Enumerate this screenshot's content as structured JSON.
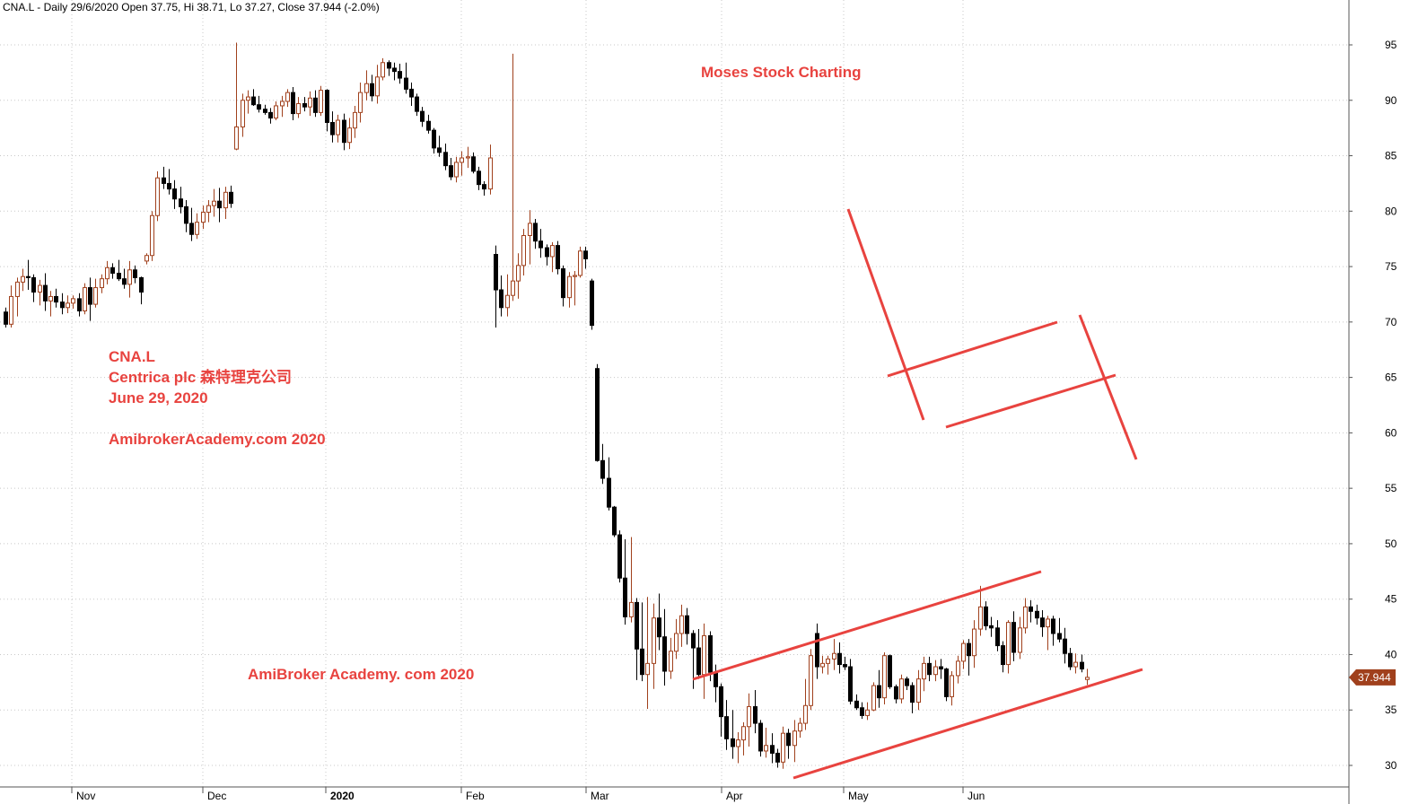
{
  "chart_data": {
    "type": "candlestick",
    "header": "CNA.L - Daily 29/6/2020 Open 37.75, Hi 38.71, Lo 37.27, Close 37.944 (-2.0%)",
    "ylim": [
      28,
      97
    ],
    "y_ticks": [
      95,
      90,
      85,
      80,
      75,
      70,
      65,
      60,
      55,
      50,
      45,
      40,
      35,
      30
    ],
    "x_ticks": [
      {
        "label": "Nov",
        "bold": false
      },
      {
        "label": "Dec",
        "bold": false
      },
      {
        "label": "2020",
        "bold": true
      },
      {
        "label": "Feb",
        "bold": false
      },
      {
        "label": "Mar",
        "bold": false
      },
      {
        "label": "Apr",
        "bold": false
      },
      {
        "label": "May",
        "bold": false
      },
      {
        "label": "Jun",
        "bold": false
      }
    ],
    "grid": true,
    "up_color": "#a0401c",
    "down_color": "#000000",
    "annotation_color": "#e8433f",
    "last_price": {
      "value": 37.944,
      "label": "37.944",
      "color": "#a0401c"
    },
    "annotations": [
      "Moses Stock Charting",
      "CNA.L",
      "Centrica plc 森特理克公司",
      "June 29, 2020",
      "AmibrokerAcademy.com 2020",
      "AmiBroker Academy. com 2020"
    ],
    "candles": [
      [
        70.9,
        71.3,
        69.5,
        69.8
      ],
      [
        69.8,
        73.3,
        69.5,
        72.3
      ],
      [
        72.3,
        74.0,
        70.5,
        73.6
      ],
      [
        73.6,
        74.8,
        72.8,
        74.1
      ],
      [
        74.1,
        75.6,
        72.9,
        74.0
      ],
      [
        74.0,
        74.3,
        71.8,
        72.7
      ],
      [
        72.7,
        73.8,
        71.5,
        73.3
      ],
      [
        73.3,
        74.4,
        71.0,
        71.9
      ],
      [
        71.9,
        72.8,
        70.5,
        72.3
      ],
      [
        72.3,
        73.0,
        71.3,
        71.8
      ],
      [
        71.8,
        72.6,
        70.7,
        71.3
      ],
      [
        71.3,
        72.4,
        70.8,
        71.7
      ],
      [
        71.7,
        72.4,
        71.2,
        72.1
      ],
      [
        72.1,
        72.6,
        70.5,
        71.0
      ],
      [
        71.0,
        73.5,
        70.7,
        73.1
      ],
      [
        73.1,
        74.0,
        70.1,
        71.6
      ],
      [
        71.6,
        73.9,
        71.3,
        73.1
      ],
      [
        73.1,
        74.3,
        72.6,
        73.9
      ],
      [
        73.9,
        75.5,
        73.4,
        74.9
      ],
      [
        74.9,
        75.3,
        73.9,
        74.4
      ],
      [
        74.4,
        75.6,
        73.7,
        73.9
      ],
      [
        73.9,
        74.8,
        73.0,
        73.4
      ],
      [
        73.4,
        75.5,
        72.2,
        74.7
      ],
      [
        74.7,
        75.1,
        73.5,
        74.0
      ],
      [
        74.0,
        74.1,
        71.6,
        72.7
      ],
      [
        75.5,
        76.2,
        75.2,
        76.0
      ],
      [
        76.0,
        80.0,
        75.5,
        79.6
      ],
      [
        79.6,
        83.6,
        79.1,
        83.0
      ],
      [
        83.0,
        84.0,
        82.0,
        82.5
      ],
      [
        82.5,
        83.8,
        81.5,
        82.0
      ],
      [
        82.0,
        82.8,
        80.2,
        81.1
      ],
      [
        81.1,
        82.2,
        79.8,
        80.4
      ],
      [
        80.4,
        81.0,
        78.1,
        78.9
      ],
      [
        78.9,
        80.3,
        77.3,
        77.9
      ],
      [
        77.9,
        79.8,
        77.5,
        79.0
      ],
      [
        79.0,
        80.5,
        78.4,
        79.9
      ],
      [
        79.9,
        81.0,
        79.0,
        80.5
      ],
      [
        80.5,
        82.0,
        79.5,
        80.9
      ],
      [
        80.9,
        82.1,
        79.0,
        80.3
      ],
      [
        80.3,
        82.2,
        79.3,
        81.7
      ],
      [
        81.7,
        82.3,
        80.3,
        80.7
      ],
      [
        85.6,
        95.2,
        85.5,
        87.6
      ],
      [
        87.6,
        90.6,
        86.7,
        90.0
      ],
      [
        90.0,
        90.9,
        88.8,
        90.3
      ],
      [
        90.3,
        91.0,
        89.5,
        89.6
      ],
      [
        89.6,
        90.4,
        88.9,
        89.2
      ],
      [
        89.2,
        89.6,
        88.7,
        88.9
      ],
      [
        88.9,
        89.3,
        87.9,
        88.4
      ],
      [
        88.4,
        89.9,
        88.2,
        89.5
      ],
      [
        89.5,
        90.4,
        88.5,
        89.9
      ],
      [
        89.9,
        91.0,
        89.4,
        90.7
      ],
      [
        90.7,
        91.2,
        88.2,
        88.8
      ],
      [
        88.8,
        90.3,
        88.4,
        89.7
      ],
      [
        89.7,
        90.3,
        89.0,
        89.4
      ],
      [
        89.4,
        90.8,
        88.6,
        90.2
      ],
      [
        90.2,
        90.9,
        88.5,
        88.9
      ],
      [
        88.9,
        91.3,
        88.6,
        90.9
      ],
      [
        90.9,
        91.0,
        87.2,
        88.0
      ],
      [
        88.0,
        89.0,
        86.2,
        86.9
      ],
      [
        86.9,
        88.7,
        86.2,
        88.2
      ],
      [
        88.2,
        88.8,
        85.5,
        86.2
      ],
      [
        86.2,
        88.4,
        85.6,
        87.5
      ],
      [
        87.5,
        89.5,
        86.6,
        88.9
      ],
      [
        88.9,
        91.6,
        88.0,
        90.7
      ],
      [
        90.7,
        92.7,
        90.0,
        91.5
      ],
      [
        91.5,
        92.3,
        89.9,
        90.4
      ],
      [
        90.4,
        93.2,
        89.7,
        92.1
      ],
      [
        92.1,
        93.8,
        91.8,
        93.4
      ],
      [
        93.4,
        93.6,
        92.2,
        92.9
      ],
      [
        92.9,
        93.4,
        91.8,
        92.6
      ],
      [
        92.6,
        93.3,
        91.5,
        92.0
      ],
      [
        92.0,
        93.4,
        90.6,
        91.0
      ],
      [
        91.0,
        91.6,
        89.5,
        90.3
      ],
      [
        90.3,
        90.6,
        88.6,
        89.0
      ],
      [
        89.0,
        89.4,
        87.6,
        88.1
      ],
      [
        88.1,
        88.7,
        87.0,
        87.3
      ],
      [
        87.3,
        87.5,
        85.2,
        85.7
      ],
      [
        85.7,
        86.8,
        84.9,
        85.3
      ],
      [
        85.3,
        86.1,
        83.7,
        84.1
      ],
      [
        84.1,
        84.8,
        82.8,
        83.1
      ],
      [
        83.1,
        84.9,
        82.6,
        84.4
      ],
      [
        84.4,
        85.4,
        83.2,
        84.8
      ],
      [
        84.8,
        85.8,
        83.9,
        84.9
      ],
      [
        84.9,
        85.3,
        83.4,
        83.6
      ],
      [
        83.6,
        84.0,
        81.9,
        82.4
      ],
      [
        82.4,
        82.7,
        81.4,
        82.0
      ],
      [
        82.0,
        86.0,
        81.5,
        84.8
      ],
      [
        76.1,
        76.9,
        69.5,
        72.9
      ],
      [
        72.9,
        74.2,
        70.5,
        71.3
      ],
      [
        71.3,
        74.3,
        70.5,
        72.4
      ],
      [
        72.4,
        94.2,
        71.9,
        73.7
      ],
      [
        73.7,
        76.2,
        72.1,
        75.1
      ],
      [
        75.1,
        78.4,
        74.2,
        77.8
      ],
      [
        77.8,
        80.1,
        75.2,
        78.9
      ],
      [
        78.9,
        79.3,
        76.6,
        77.3
      ],
      [
        77.3,
        78.4,
        75.8,
        76.7
      ],
      [
        76.7,
        77.0,
        75.1,
        75.9
      ],
      [
        75.9,
        77.2,
        74.5,
        76.9
      ],
      [
        76.9,
        77.3,
        74.3,
        74.8
      ],
      [
        74.8,
        75.1,
        71.4,
        72.2
      ],
      [
        72.2,
        74.5,
        71.3,
        74.1
      ],
      [
        74.1,
        74.6,
        71.5,
        74.2
      ],
      [
        74.2,
        76.8,
        74.0,
        76.4
      ],
      [
        76.4,
        76.8,
        74.8,
        75.7
      ],
      [
        73.7,
        73.9,
        69.3,
        69.7
      ],
      [
        65.8,
        66.2,
        57.4,
        57.5
      ],
      [
        57.5,
        59.0,
        55.4,
        55.9
      ],
      [
        55.9,
        57.8,
        53.0,
        53.3
      ],
      [
        53.3,
        53.4,
        50.6,
        50.8
      ],
      [
        50.8,
        51.2,
        46.5,
        46.9
      ],
      [
        46.9,
        50.4,
        42.7,
        43.4
      ],
      [
        43.4,
        50.6,
        42.9,
        44.7
      ],
      [
        44.7,
        45.1,
        37.7,
        40.5
      ],
      [
        40.5,
        44.7,
        37.6,
        38.2
      ],
      [
        38.2,
        45.2,
        35.1,
        39.2
      ],
      [
        39.2,
        44.6,
        36.9,
        43.3
      ],
      [
        43.3,
        45.5,
        40.4,
        41.6
      ],
      [
        41.6,
        44.1,
        37.2,
        38.5
      ],
      [
        38.5,
        41.5,
        37.8,
        40.3
      ],
      [
        40.3,
        43.2,
        39.6,
        41.9
      ],
      [
        41.9,
        44.5,
        40.7,
        43.5
      ],
      [
        43.5,
        44.2,
        40.9,
        41.9
      ],
      [
        41.9,
        42.2,
        36.9,
        40.6
      ],
      [
        40.6,
        42.3,
        37.8,
        38.2
      ],
      [
        38.2,
        42.8,
        36.0,
        41.7
      ],
      [
        41.7,
        42.1,
        37.6,
        38.4
      ],
      [
        38.4,
        39.1,
        35.7,
        37.1
      ],
      [
        37.1,
        37.4,
        32.6,
        34.4
      ],
      [
        34.4,
        35.9,
        31.4,
        32.4
      ],
      [
        32.4,
        35.0,
        30.6,
        31.7
      ],
      [
        31.7,
        33.0,
        30.2,
        32.3
      ],
      [
        32.3,
        33.9,
        30.9,
        33.5
      ],
      [
        33.5,
        36.5,
        31.7,
        35.3
      ],
      [
        35.3,
        36.8,
        32.9,
        33.8
      ],
      [
        33.8,
        34.1,
        30.8,
        31.3
      ],
      [
        31.3,
        33.4,
        30.7,
        31.8
      ],
      [
        31.8,
        32.9,
        30.2,
        31.1
      ],
      [
        31.1,
        31.5,
        29.8,
        30.3
      ],
      [
        30.3,
        33.5,
        29.7,
        32.9
      ],
      [
        32.9,
        33.3,
        30.6,
        31.8
      ],
      [
        31.8,
        34.1,
        30.3,
        33.1
      ],
      [
        33.1,
        34.3,
        32.5,
        33.8
      ],
      [
        33.8,
        37.8,
        33.2,
        35.4
      ],
      [
        35.4,
        40.5,
        35.0,
        39.9
      ],
      [
        41.9,
        42.8,
        37.8,
        38.9
      ],
      [
        38.9,
        39.9,
        38.3,
        39.2
      ],
      [
        39.2,
        39.9,
        38.2,
        39.6
      ],
      [
        39.6,
        41.4,
        38.6,
        40.1
      ],
      [
        40.1,
        41.1,
        38.3,
        39.1
      ],
      [
        39.1,
        39.8,
        38.6,
        38.9
      ],
      [
        38.9,
        39.6,
        35.5,
        35.8
      ],
      [
        35.8,
        36.4,
        35.0,
        35.2
      ],
      [
        35.2,
        35.7,
        34.2,
        34.5
      ],
      [
        34.5,
        35.7,
        34.1,
        35.0
      ],
      [
        35.0,
        37.5,
        34.9,
        37.2
      ],
      [
        37.2,
        38.6,
        35.2,
        36.1
      ],
      [
        36.1,
        40.2,
        35.5,
        39.9
      ],
      [
        39.9,
        40.0,
        36.9,
        37.1
      ],
      [
        37.1,
        37.3,
        35.6,
        36.0
      ],
      [
        36.0,
        38.2,
        35.6,
        37.8
      ],
      [
        37.8,
        38.0,
        36.8,
        37.2
      ],
      [
        37.2,
        37.5,
        34.7,
        35.7
      ],
      [
        35.7,
        38.6,
        35.0,
        37.8
      ],
      [
        37.8,
        39.8,
        36.7,
        39.2
      ],
      [
        39.2,
        39.8,
        37.6,
        38.2
      ],
      [
        38.2,
        39.5,
        37.6,
        38.9
      ],
      [
        38.9,
        39.6,
        37.8,
        38.7
      ],
      [
        38.7,
        38.8,
        35.8,
        36.2
      ],
      [
        36.2,
        38.5,
        35.4,
        38.1
      ],
      [
        38.1,
        39.9,
        37.4,
        39.4
      ],
      [
        39.4,
        41.3,
        38.7,
        41.0
      ],
      [
        41.0,
        41.4,
        38.1,
        39.9
      ],
      [
        39.9,
        43.1,
        38.8,
        42.3
      ],
      [
        42.3,
        46.2,
        41.7,
        44.3
      ],
      [
        44.3,
        44.8,
        42.2,
        42.6
      ],
      [
        42.6,
        43.4,
        41.6,
        42.4
      ],
      [
        42.4,
        43.1,
        40.3,
        40.8
      ],
      [
        40.8,
        41.2,
        38.4,
        39.1
      ],
      [
        39.1,
        43.1,
        38.3,
        42.9
      ],
      [
        42.9,
        43.9,
        39.4,
        40.2
      ],
      [
        40.2,
        43.4,
        39.6,
        42.4
      ],
      [
        42.4,
        45.1,
        41.9,
        44.3
      ],
      [
        44.3,
        44.9,
        42.9,
        43.9
      ],
      [
        43.9,
        44.5,
        42.7,
        43.3
      ],
      [
        43.3,
        44.0,
        41.6,
        42.5
      ],
      [
        42.5,
        43.5,
        40.4,
        43.2
      ],
      [
        43.2,
        43.5,
        40.8,
        41.9
      ],
      [
        41.9,
        43.3,
        41.1,
        41.4
      ],
      [
        41.4,
        42.4,
        39.2,
        40.1
      ],
      [
        40.1,
        40.6,
        38.6,
        38.9
      ],
      [
        38.9,
        40.1,
        38.3,
        39.3
      ],
      [
        39.3,
        40.0,
        38.4,
        38.7
      ],
      [
        37.75,
        38.71,
        37.27,
        37.944
      ]
    ]
  }
}
